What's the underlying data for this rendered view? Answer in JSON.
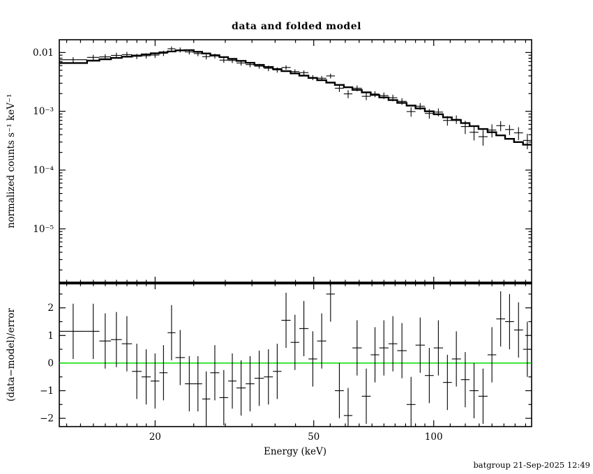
{
  "footer": "batgroup 21-Sep-2025 12:49",
  "colors": {
    "frame": "#000000",
    "data": "#000000",
    "model": "#000000",
    "zero_line": "#00dd00",
    "background": "#ffffff"
  },
  "chart_data": [
    {
      "type": "line",
      "panel": "top",
      "title": "data and folded model",
      "xlabel": "",
      "ylabel": "normalized counts s⁻¹ keV⁻¹",
      "xscale": "log",
      "yscale": "log",
      "xlim": [
        11.5,
        176
      ],
      "ylim": [
        1.2e-06,
        0.0165
      ],
      "grid": false,
      "legend": "none",
      "xticks_major": [
        [
          20,
          "20"
        ],
        [
          50,
          "50"
        ],
        [
          100,
          "100"
        ]
      ],
      "xticks_minor": [
        12,
        13,
        14,
        15,
        16,
        17,
        18,
        19,
        25,
        30,
        35,
        40,
        45,
        55,
        60,
        65,
        70,
        75,
        80,
        85,
        90,
        95,
        110,
        120,
        130,
        140,
        150,
        160,
        170
      ],
      "yticks_major": [
        [
          0.01,
          "0.01"
        ],
        [
          0.001,
          "10⁻³"
        ],
        [
          0.0001,
          "10⁻⁴"
        ],
        [
          1e-05,
          "10⁻⁵"
        ]
      ],
      "yticks_minor": [
        2e-06,
        3e-06,
        4e-06,
        5e-06,
        6e-06,
        7e-06,
        8e-06,
        9e-06,
        2e-05,
        3e-05,
        4e-05,
        5e-05,
        6e-05,
        7e-05,
        8e-05,
        9e-05,
        0.0002,
        0.0003,
        0.0004,
        0.0005,
        0.0006,
        0.0007,
        0.0008,
        0.0009,
        0.002,
        0.003,
        0.004,
        0.005,
        0.006,
        0.007,
        0.008,
        0.009
      ],
      "series": [
        {
          "name": "data",
          "style": "cross-with-errorbars",
          "color": "#000000"
        },
        {
          "name": "folded model",
          "style": "step-histogram",
          "color": "#000000"
        }
      ],
      "bins_format": [
        "e_lo_keV",
        "e_hi_keV",
        "model_counts",
        "data_counts",
        "data_error",
        "residual_sigma"
      ],
      "bins": [
        [
          11.5,
          13.5,
          0.00663,
          0.00754,
          0.0008,
          1.15
        ],
        [
          13.5,
          14.5,
          0.00727,
          0.00827,
          0.00087,
          1.15
        ],
        [
          14.5,
          15.5,
          0.00769,
          0.00843,
          0.00092,
          0.8
        ],
        [
          15.5,
          16.5,
          0.0081,
          0.00893,
          0.00097,
          0.85
        ],
        [
          16.5,
          17.5,
          0.0085,
          0.00921,
          0.00102,
          0.7
        ],
        [
          17.5,
          18.5,
          0.00889,
          0.00862,
          0.00089,
          -0.3
        ],
        [
          18.5,
          19.5,
          0.00928,
          0.00882,
          0.00093,
          -0.5
        ],
        [
          19.5,
          20.5,
          0.00968,
          0.00905,
          0.00097,
          -0.65
        ],
        [
          20.5,
          21.5,
          0.01007,
          0.00972,
          0.00101,
          -0.35
        ],
        [
          21.5,
          22.5,
          0.01044,
          0.01159,
          0.00104,
          1.1
        ],
        [
          22.5,
          23.75,
          0.01086,
          0.01108,
          0.00109,
          0.2
        ],
        [
          23.75,
          25,
          0.01098,
          0.01024,
          0.00099,
          -0.75
        ],
        [
          25,
          26.25,
          0.01028,
          0.00959,
          0.00093,
          -0.75
        ],
        [
          26.25,
          27.5,
          0.00963,
          0.0085,
          0.00087,
          -1.3
        ],
        [
          27.5,
          29,
          0.00899,
          0.00871,
          0.00081,
          -0.35
        ],
        [
          29,
          30.5,
          0.00836,
          0.00742,
          0.00075,
          -1.25
        ],
        [
          30.5,
          32,
          0.00778,
          0.00732,
          0.0007,
          -0.65
        ],
        [
          32,
          33.75,
          0.00722,
          0.00664,
          0.00065,
          -0.9
        ],
        [
          33.75,
          35.5,
          0.00668,
          0.00623,
          0.0006,
          -0.75
        ],
        [
          35.5,
          37.5,
          0.00616,
          0.00585,
          0.00055,
          -0.55
        ],
        [
          37.5,
          39.5,
          0.00567,
          0.00539,
          0.00057,
          -0.5
        ],
        [
          39.5,
          41.5,
          0.00523,
          0.00507,
          0.00052,
          -0.3
        ],
        [
          41.5,
          43.75,
          0.00481,
          0.00556,
          0.00048,
          1.55
        ],
        [
          43.75,
          46,
          0.00441,
          0.00474,
          0.00044,
          0.75
        ],
        [
          46,
          48.5,
          0.00404,
          0.00455,
          0.0004,
          1.25
        ],
        [
          48.5,
          51,
          0.0037,
          0.00376,
          0.00037,
          0.15
        ],
        [
          51,
          53.75,
          0.00338,
          0.00365,
          0.00034,
          0.8
        ],
        [
          53.75,
          56.5,
          0.00308,
          0.004,
          0.00037,
          2.5
        ],
        [
          56.5,
          59.5,
          0.00281,
          0.00247,
          0.00034,
          -1.0
        ],
        [
          59.5,
          62.5,
          0.00256,
          0.00198,
          0.00031,
          -1.9
        ],
        [
          62.5,
          66,
          0.00232,
          0.00247,
          0.00028,
          0.55
        ],
        [
          66,
          69.5,
          0.0021,
          0.0018,
          0.00025,
          -1.2
        ],
        [
          69.5,
          73,
          0.0019,
          0.00197,
          0.00023,
          0.3
        ],
        [
          73,
          77,
          0.00172,
          0.00185,
          0.00024,
          0.55
        ],
        [
          77,
          81,
          0.00155,
          0.0017,
          0.00022,
          0.7
        ],
        [
          81,
          85.5,
          0.00139,
          0.00148,
          0.00019,
          0.45
        ],
        [
          85.5,
          90,
          0.00125,
          0.00099,
          0.00018,
          -1.5
        ],
        [
          90,
          95,
          0.00112,
          0.00122,
          0.00016,
          0.65
        ],
        [
          95,
          100,
          0.001,
          0.00092,
          0.00017,
          -0.45
        ],
        [
          100,
          105.5,
          0.00089,
          0.00097,
          0.00015,
          0.55
        ],
        [
          105.5,
          111,
          0.00079,
          0.0007,
          0.00013,
          -0.7
        ],
        [
          111,
          117,
          0.00071,
          0.00073,
          0.00012,
          0.15
        ],
        [
          117,
          123,
          0.00063,
          0.00055,
          0.00014,
          -0.6
        ],
        [
          123,
          129.5,
          0.00056,
          0.00044,
          0.00012,
          -1.0
        ],
        [
          129.5,
          136.5,
          0.0005,
          0.00037,
          0.00011,
          -1.2
        ],
        [
          136.5,
          143.5,
          0.00044,
          0.00048,
          0.00012,
          0.3
        ],
        [
          143.5,
          151,
          0.00039,
          0.00057,
          0.00011,
          1.6
        ],
        [
          151,
          159,
          0.00034,
          0.00049,
          9.6e-05,
          1.5
        ],
        [
          159,
          167.5,
          0.0003,
          0.00043,
          0.000106,
          1.2
        ],
        [
          167.5,
          176,
          0.00027,
          0.00032,
          9.4e-05,
          0.5
        ]
      ]
    },
    {
      "type": "scatter",
      "panel": "bottom",
      "title": "",
      "xlabel": "Energy (keV)",
      "ylabel": "(data−model)/error",
      "xscale": "log",
      "yscale": "linear",
      "xlim": [
        11.5,
        176
      ],
      "ylim": [
        -2.3,
        2.9
      ],
      "grid": false,
      "legend": "none",
      "yticks_major": [
        [
          -2,
          "−2"
        ],
        [
          -1,
          "−1"
        ],
        [
          0,
          "0"
        ],
        [
          1,
          "1"
        ],
        [
          2,
          "2"
        ]
      ],
      "yticks_minor": [
        -1.5,
        -0.5,
        0.5,
        1.5,
        2.5
      ],
      "zero_line": 0,
      "residual_halfwidth": 1,
      "note": "points are the residual_sigma column of the top-panel bins; error bars are ±1"
    }
  ]
}
